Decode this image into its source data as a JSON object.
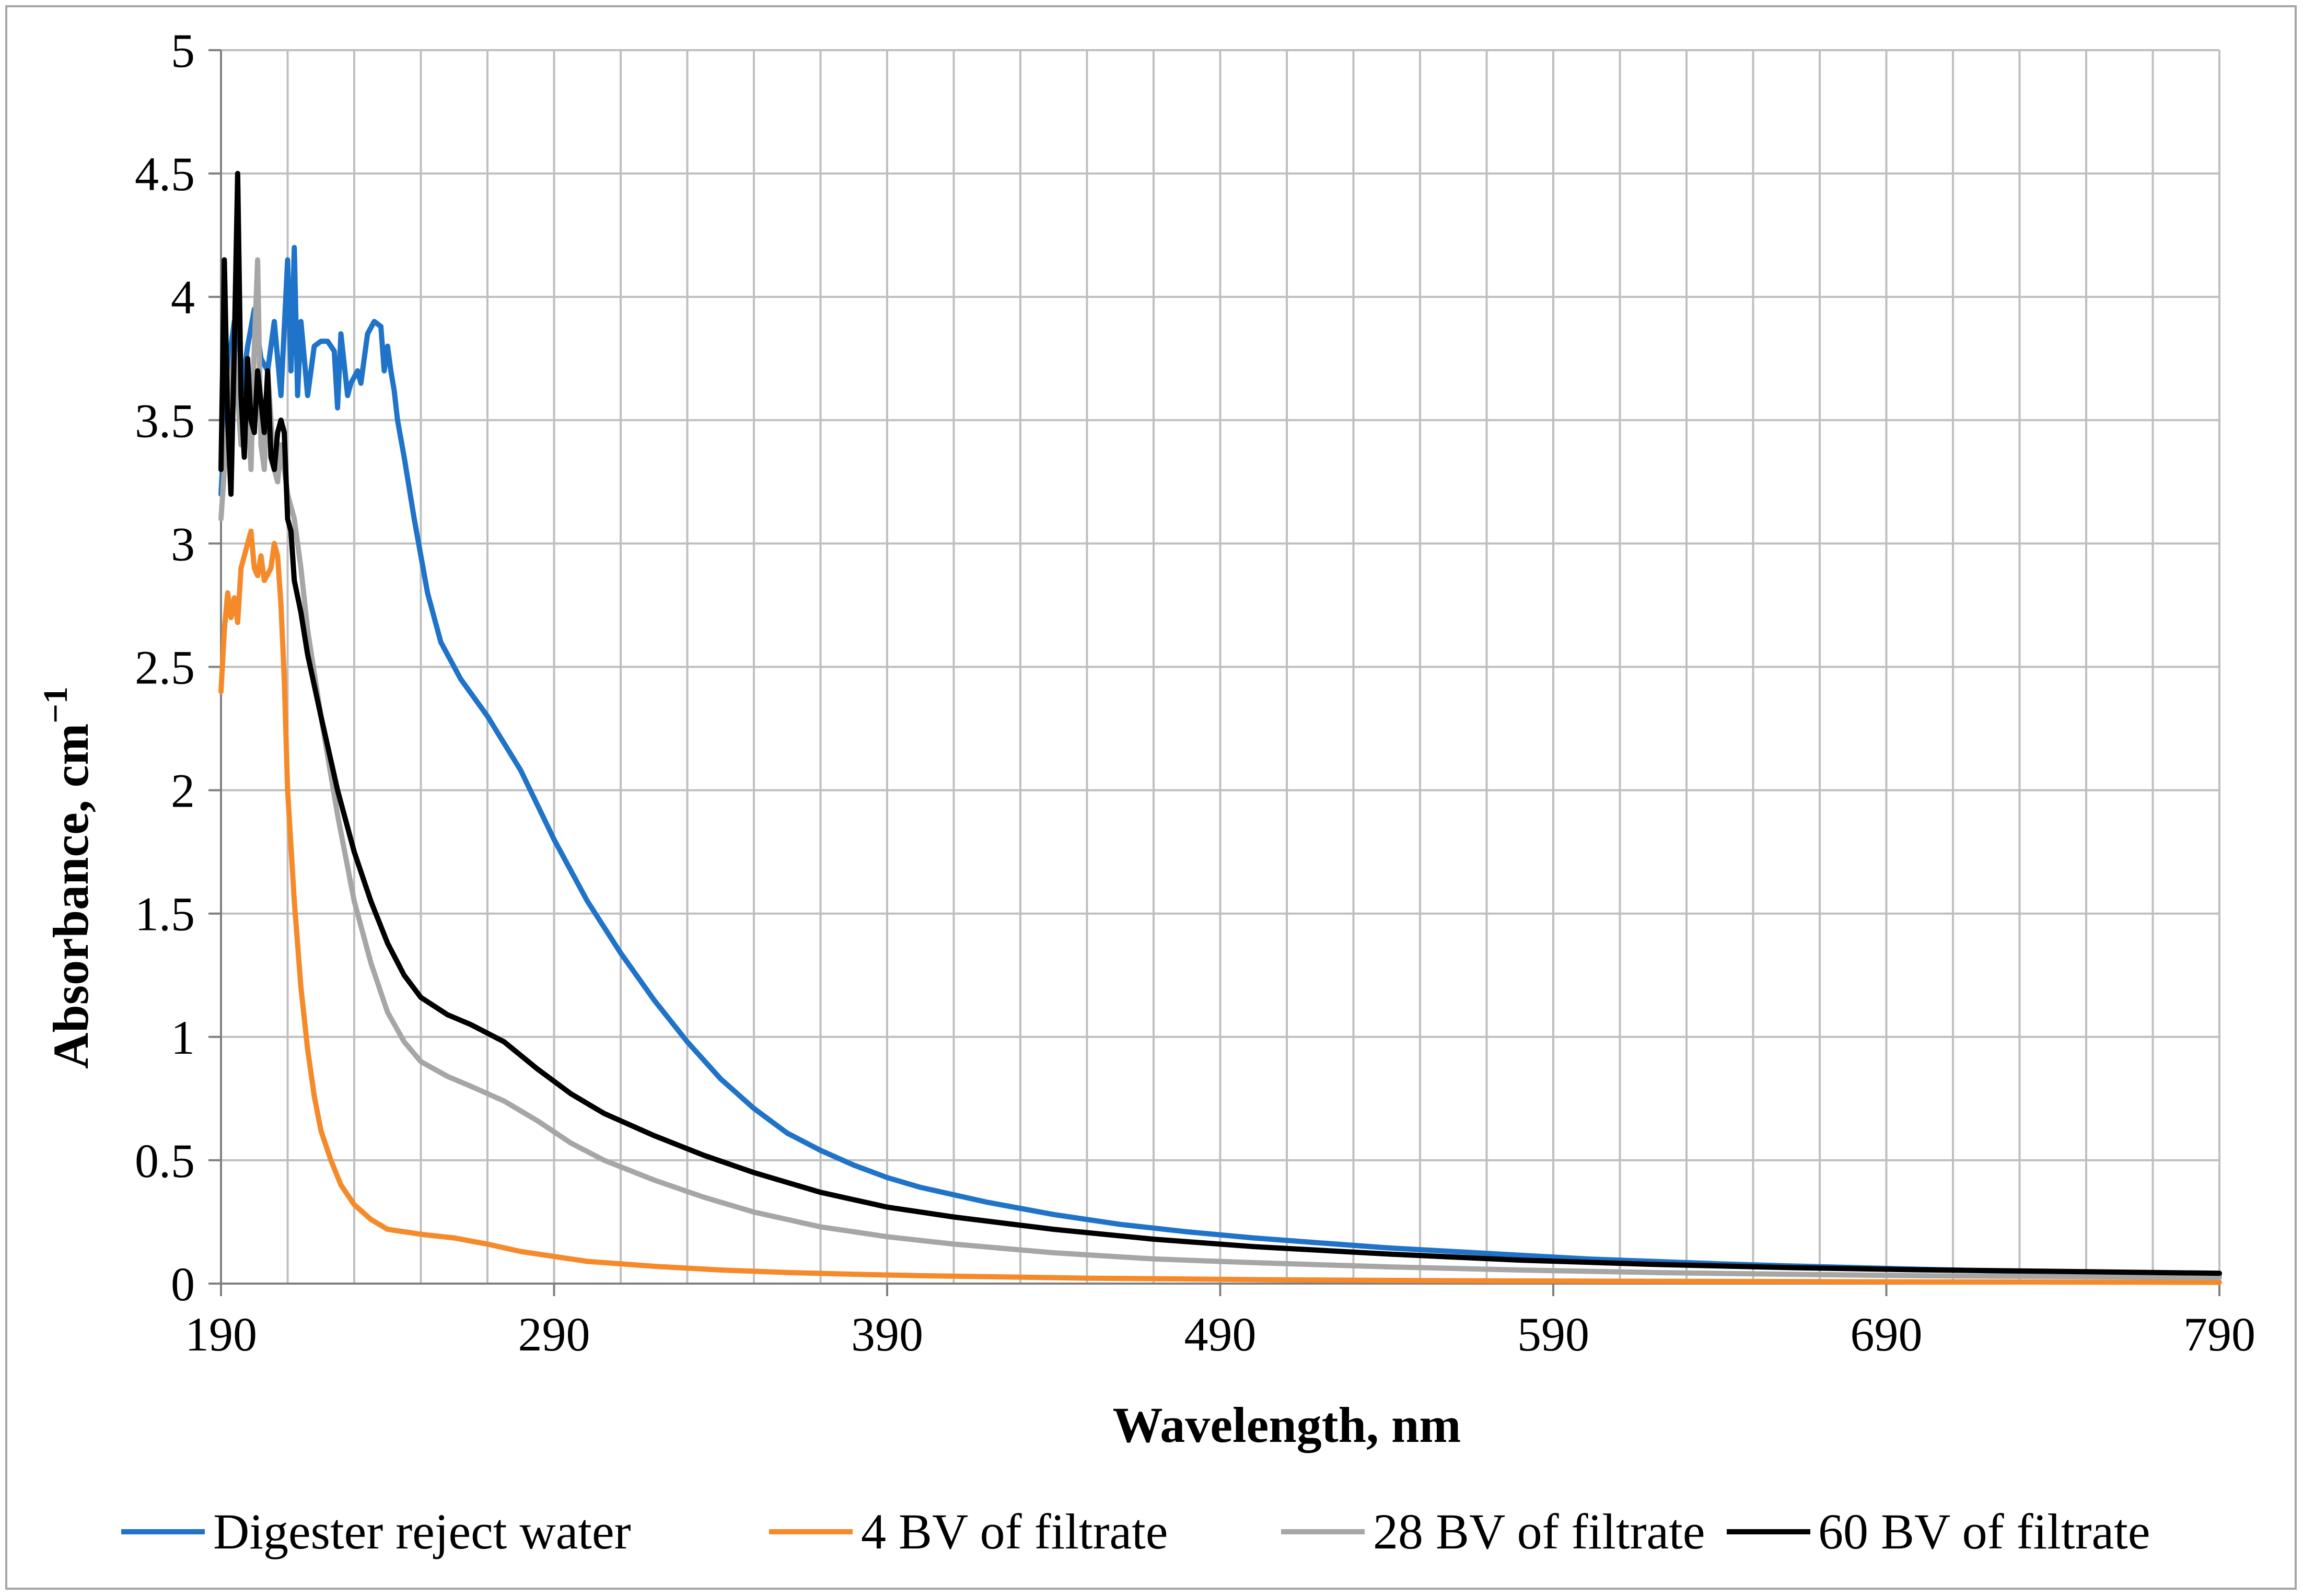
{
  "chart_data": {
    "type": "line",
    "title": "",
    "xlabel": "Wavelength, nm",
    "ylabel": "Absorbance, cm",
    "ylabel_sup": "−1",
    "xlim": [
      190,
      790
    ],
    "ylim": [
      0,
      5
    ],
    "x_ticks": [
      190,
      290,
      390,
      490,
      590,
      690,
      790
    ],
    "x_tick_labels": [
      "190",
      "290",
      "390",
      "490",
      "590",
      "690",
      "790"
    ],
    "y_ticks": [
      0,
      0.5,
      1,
      1.5,
      2,
      2.5,
      3,
      3.5,
      4,
      4.5,
      5
    ],
    "y_tick_labels": [
      "0",
      "0.5",
      "1",
      "1.5",
      "2",
      "2.5",
      "3",
      "3.5",
      "4",
      "4.5",
      "5"
    ],
    "x_minor_step": 20,
    "grid": true,
    "legend_position": "bottom",
    "series": [
      {
        "name": "Digester reject water",
        "color": "#1f73c8",
        "points": [
          [
            190,
            3.2
          ],
          [
            192,
            3.7
          ],
          [
            194,
            3.9
          ],
          [
            196,
            3.6
          ],
          [
            198,
            3.8
          ],
          [
            200,
            3.95
          ],
          [
            202,
            3.75
          ],
          [
            204,
            3.7
          ],
          [
            206,
            3.9
          ],
          [
            208,
            3.6
          ],
          [
            210,
            4.15
          ],
          [
            211,
            3.7
          ],
          [
            212,
            4.2
          ],
          [
            213,
            3.6
          ],
          [
            214,
            3.9
          ],
          [
            216,
            3.6
          ],
          [
            218,
            3.8
          ],
          [
            220,
            3.82
          ],
          [
            222,
            3.82
          ],
          [
            224,
            3.78
          ],
          [
            225,
            3.55
          ],
          [
            226,
            3.85
          ],
          [
            228,
            3.6
          ],
          [
            229,
            3.65
          ],
          [
            231,
            3.7
          ],
          [
            232,
            3.65
          ],
          [
            234,
            3.85
          ],
          [
            236,
            3.9
          ],
          [
            238,
            3.88
          ],
          [
            239,
            3.7
          ],
          [
            240,
            3.8
          ],
          [
            241,
            3.7
          ],
          [
            242,
            3.62
          ],
          [
            243,
            3.5
          ],
          [
            245,
            3.35
          ],
          [
            248,
            3.1
          ],
          [
            252,
            2.8
          ],
          [
            256,
            2.6
          ],
          [
            262,
            2.45
          ],
          [
            270,
            2.3
          ],
          [
            280,
            2.08
          ],
          [
            290,
            1.8
          ],
          [
            300,
            1.55
          ],
          [
            310,
            1.34
          ],
          [
            320,
            1.15
          ],
          [
            330,
            0.98
          ],
          [
            340,
            0.83
          ],
          [
            350,
            0.71
          ],
          [
            360,
            0.61
          ],
          [
            370,
            0.54
          ],
          [
            380,
            0.48
          ],
          [
            390,
            0.43
          ],
          [
            400,
            0.39
          ],
          [
            420,
            0.33
          ],
          [
            440,
            0.28
          ],
          [
            460,
            0.24
          ],
          [
            480,
            0.21
          ],
          [
            500,
            0.185
          ],
          [
            520,
            0.165
          ],
          [
            540,
            0.145
          ],
          [
            560,
            0.13
          ],
          [
            580,
            0.115
          ],
          [
            600,
            0.1
          ],
          [
            620,
            0.09
          ],
          [
            640,
            0.08
          ],
          [
            660,
            0.072
          ],
          [
            680,
            0.065
          ],
          [
            700,
            0.058
          ],
          [
            720,
            0.052
          ],
          [
            740,
            0.047
          ],
          [
            760,
            0.043
          ],
          [
            780,
            0.04
          ],
          [
            790,
            0.038
          ]
        ]
      },
      {
        "name": "4 BV of filtrate",
        "color": "#f58a2a",
        "points": [
          [
            190,
            2.4
          ],
          [
            191,
            2.65
          ],
          [
            192,
            2.8
          ],
          [
            193,
            2.7
          ],
          [
            194,
            2.78
          ],
          [
            195,
            2.68
          ],
          [
            196,
            2.9
          ],
          [
            198,
            3.0
          ],
          [
            199,
            3.05
          ],
          [
            200,
            2.9
          ],
          [
            201,
            2.87
          ],
          [
            202,
            2.95
          ],
          [
            203,
            2.85
          ],
          [
            205,
            2.9
          ],
          [
            206,
            3.0
          ],
          [
            207,
            2.95
          ],
          [
            208,
            2.75
          ],
          [
            209,
            2.45
          ],
          [
            210,
            2.0
          ],
          [
            212,
            1.55
          ],
          [
            214,
            1.2
          ],
          [
            216,
            0.95
          ],
          [
            218,
            0.76
          ],
          [
            220,
            0.62
          ],
          [
            223,
            0.5
          ],
          [
            226,
            0.4
          ],
          [
            230,
            0.32
          ],
          [
            235,
            0.26
          ],
          [
            240,
            0.22
          ],
          [
            250,
            0.2
          ],
          [
            260,
            0.185
          ],
          [
            270,
            0.16
          ],
          [
            280,
            0.13
          ],
          [
            290,
            0.11
          ],
          [
            300,
            0.09
          ],
          [
            320,
            0.07
          ],
          [
            340,
            0.055
          ],
          [
            360,
            0.045
          ],
          [
            380,
            0.038
          ],
          [
            400,
            0.032
          ],
          [
            450,
            0.022
          ],
          [
            500,
            0.016
          ],
          [
            550,
            0.012
          ],
          [
            600,
            0.01
          ],
          [
            700,
            0.007
          ],
          [
            790,
            0.005
          ]
        ]
      },
      {
        "name": "28 BV of filtrate",
        "color": "#a6a6a6",
        "points": [
          [
            190,
            3.1
          ],
          [
            192,
            3.5
          ],
          [
            194,
            3.8
          ],
          [
            196,
            3.4
          ],
          [
            198,
            3.6
          ],
          [
            199,
            3.3
          ],
          [
            200,
            3.8
          ],
          [
            201,
            4.15
          ],
          [
            202,
            3.4
          ],
          [
            203,
            3.3
          ],
          [
            204,
            3.7
          ],
          [
            206,
            3.3
          ],
          [
            207,
            3.25
          ],
          [
            208,
            3.4
          ],
          [
            210,
            3.2
          ],
          [
            212,
            3.1
          ],
          [
            214,
            2.9
          ],
          [
            216,
            2.65
          ],
          [
            220,
            2.3
          ],
          [
            225,
            1.9
          ],
          [
            230,
            1.55
          ],
          [
            235,
            1.3
          ],
          [
            240,
            1.1
          ],
          [
            245,
            0.98
          ],
          [
            250,
            0.9
          ],
          [
            258,
            0.84
          ],
          [
            265,
            0.8
          ],
          [
            275,
            0.74
          ],
          [
            285,
            0.66
          ],
          [
            295,
            0.57
          ],
          [
            305,
            0.5
          ],
          [
            320,
            0.42
          ],
          [
            335,
            0.35
          ],
          [
            350,
            0.29
          ],
          [
            370,
            0.23
          ],
          [
            390,
            0.19
          ],
          [
            410,
            0.16
          ],
          [
            440,
            0.125
          ],
          [
            470,
            0.1
          ],
          [
            500,
            0.085
          ],
          [
            540,
            0.068
          ],
          [
            580,
            0.055
          ],
          [
            620,
            0.045
          ],
          [
            660,
            0.038
          ],
          [
            700,
            0.032
          ],
          [
            750,
            0.028
          ],
          [
            790,
            0.025
          ]
        ]
      },
      {
        "name": "60 BV of filtrate",
        "color": "#000000",
        "points": [
          [
            190,
            3.3
          ],
          [
            191,
            4.15
          ],
          [
            192,
            3.5
          ],
          [
            193,
            3.2
          ],
          [
            194,
            3.8
          ],
          [
            195,
            4.5
          ],
          [
            196,
            3.6
          ],
          [
            197,
            3.35
          ],
          [
            198,
            3.75
          ],
          [
            199,
            3.5
          ],
          [
            200,
            3.45
          ],
          [
            201,
            3.7
          ],
          [
            203,
            3.45
          ],
          [
            204,
            3.7
          ],
          [
            205,
            3.35
          ],
          [
            206,
            3.3
          ],
          [
            207,
            3.45
          ],
          [
            208,
            3.5
          ],
          [
            209,
            3.45
          ],
          [
            210,
            3.1
          ],
          [
            211,
            3.05
          ],
          [
            212,
            2.85
          ],
          [
            214,
            2.72
          ],
          [
            216,
            2.55
          ],
          [
            220,
            2.3
          ],
          [
            225,
            2.0
          ],
          [
            230,
            1.75
          ],
          [
            235,
            1.55
          ],
          [
            240,
            1.38
          ],
          [
            245,
            1.25
          ],
          [
            250,
            1.16
          ],
          [
            258,
            1.09
          ],
          [
            265,
            1.05
          ],
          [
            275,
            0.98
          ],
          [
            285,
            0.87
          ],
          [
            295,
            0.77
          ],
          [
            305,
            0.69
          ],
          [
            320,
            0.6
          ],
          [
            335,
            0.52
          ],
          [
            350,
            0.45
          ],
          [
            370,
            0.37
          ],
          [
            390,
            0.31
          ],
          [
            410,
            0.27
          ],
          [
            440,
            0.22
          ],
          [
            470,
            0.18
          ],
          [
            500,
            0.15
          ],
          [
            540,
            0.12
          ],
          [
            580,
            0.095
          ],
          [
            620,
            0.078
          ],
          [
            660,
            0.065
          ],
          [
            700,
            0.056
          ],
          [
            750,
            0.048
          ],
          [
            790,
            0.042
          ]
        ]
      }
    ]
  }
}
